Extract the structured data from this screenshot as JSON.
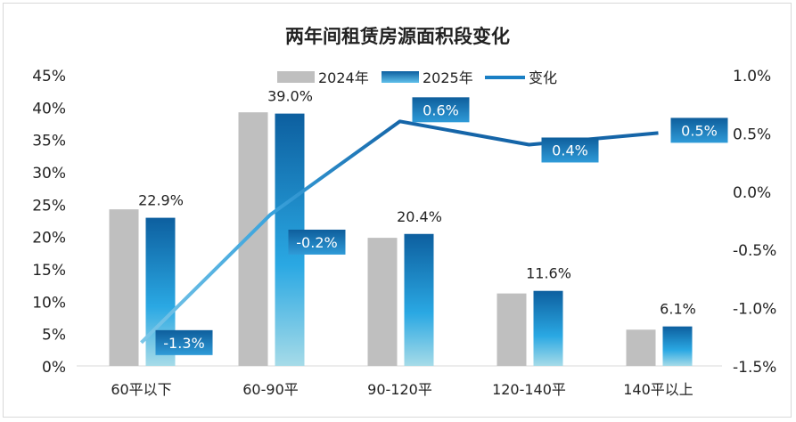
{
  "chart_data": {
    "type": "bar+line",
    "title": "两年间租赁房源面积段变化",
    "categories": [
      "60平以下",
      "60-90平",
      "90-120平",
      "120-140平",
      "140平以上"
    ],
    "series": [
      {
        "name": "2024年",
        "type": "bar",
        "axis": "left",
        "values": [
          24.2,
          39.2,
          19.8,
          11.2,
          5.6
        ],
        "color": "#bfbfbf"
      },
      {
        "name": "2025年",
        "type": "bar",
        "axis": "left",
        "values": [
          22.9,
          39.0,
          20.4,
          11.6,
          6.1
        ],
        "labels": [
          "22.9%",
          "39.0%",
          "20.4%",
          "11.6%",
          "6.1%"
        ],
        "color": "#1a7fc4"
      },
      {
        "name": "变化",
        "type": "line",
        "axis": "right",
        "values": [
          -1.3,
          -0.2,
          0.6,
          0.4,
          0.5
        ],
        "labels": [
          "-1.3%",
          "-0.2%",
          "0.6%",
          "0.4%",
          "0.5%"
        ],
        "color": "#1565a8"
      }
    ],
    "left_axis": {
      "range": [
        0,
        45
      ],
      "ticks": [
        "0%",
        "5%",
        "10%",
        "15%",
        "20%",
        "25%",
        "30%",
        "35%",
        "40%",
        "45%"
      ]
    },
    "right_axis": {
      "range": [
        -1.5,
        1.0
      ],
      "ticks": [
        "-1.5%",
        "-1.0%",
        "-0.5%",
        "0.0%",
        "0.5%",
        "1.0%"
      ]
    },
    "grid": false,
    "legend": "top"
  }
}
